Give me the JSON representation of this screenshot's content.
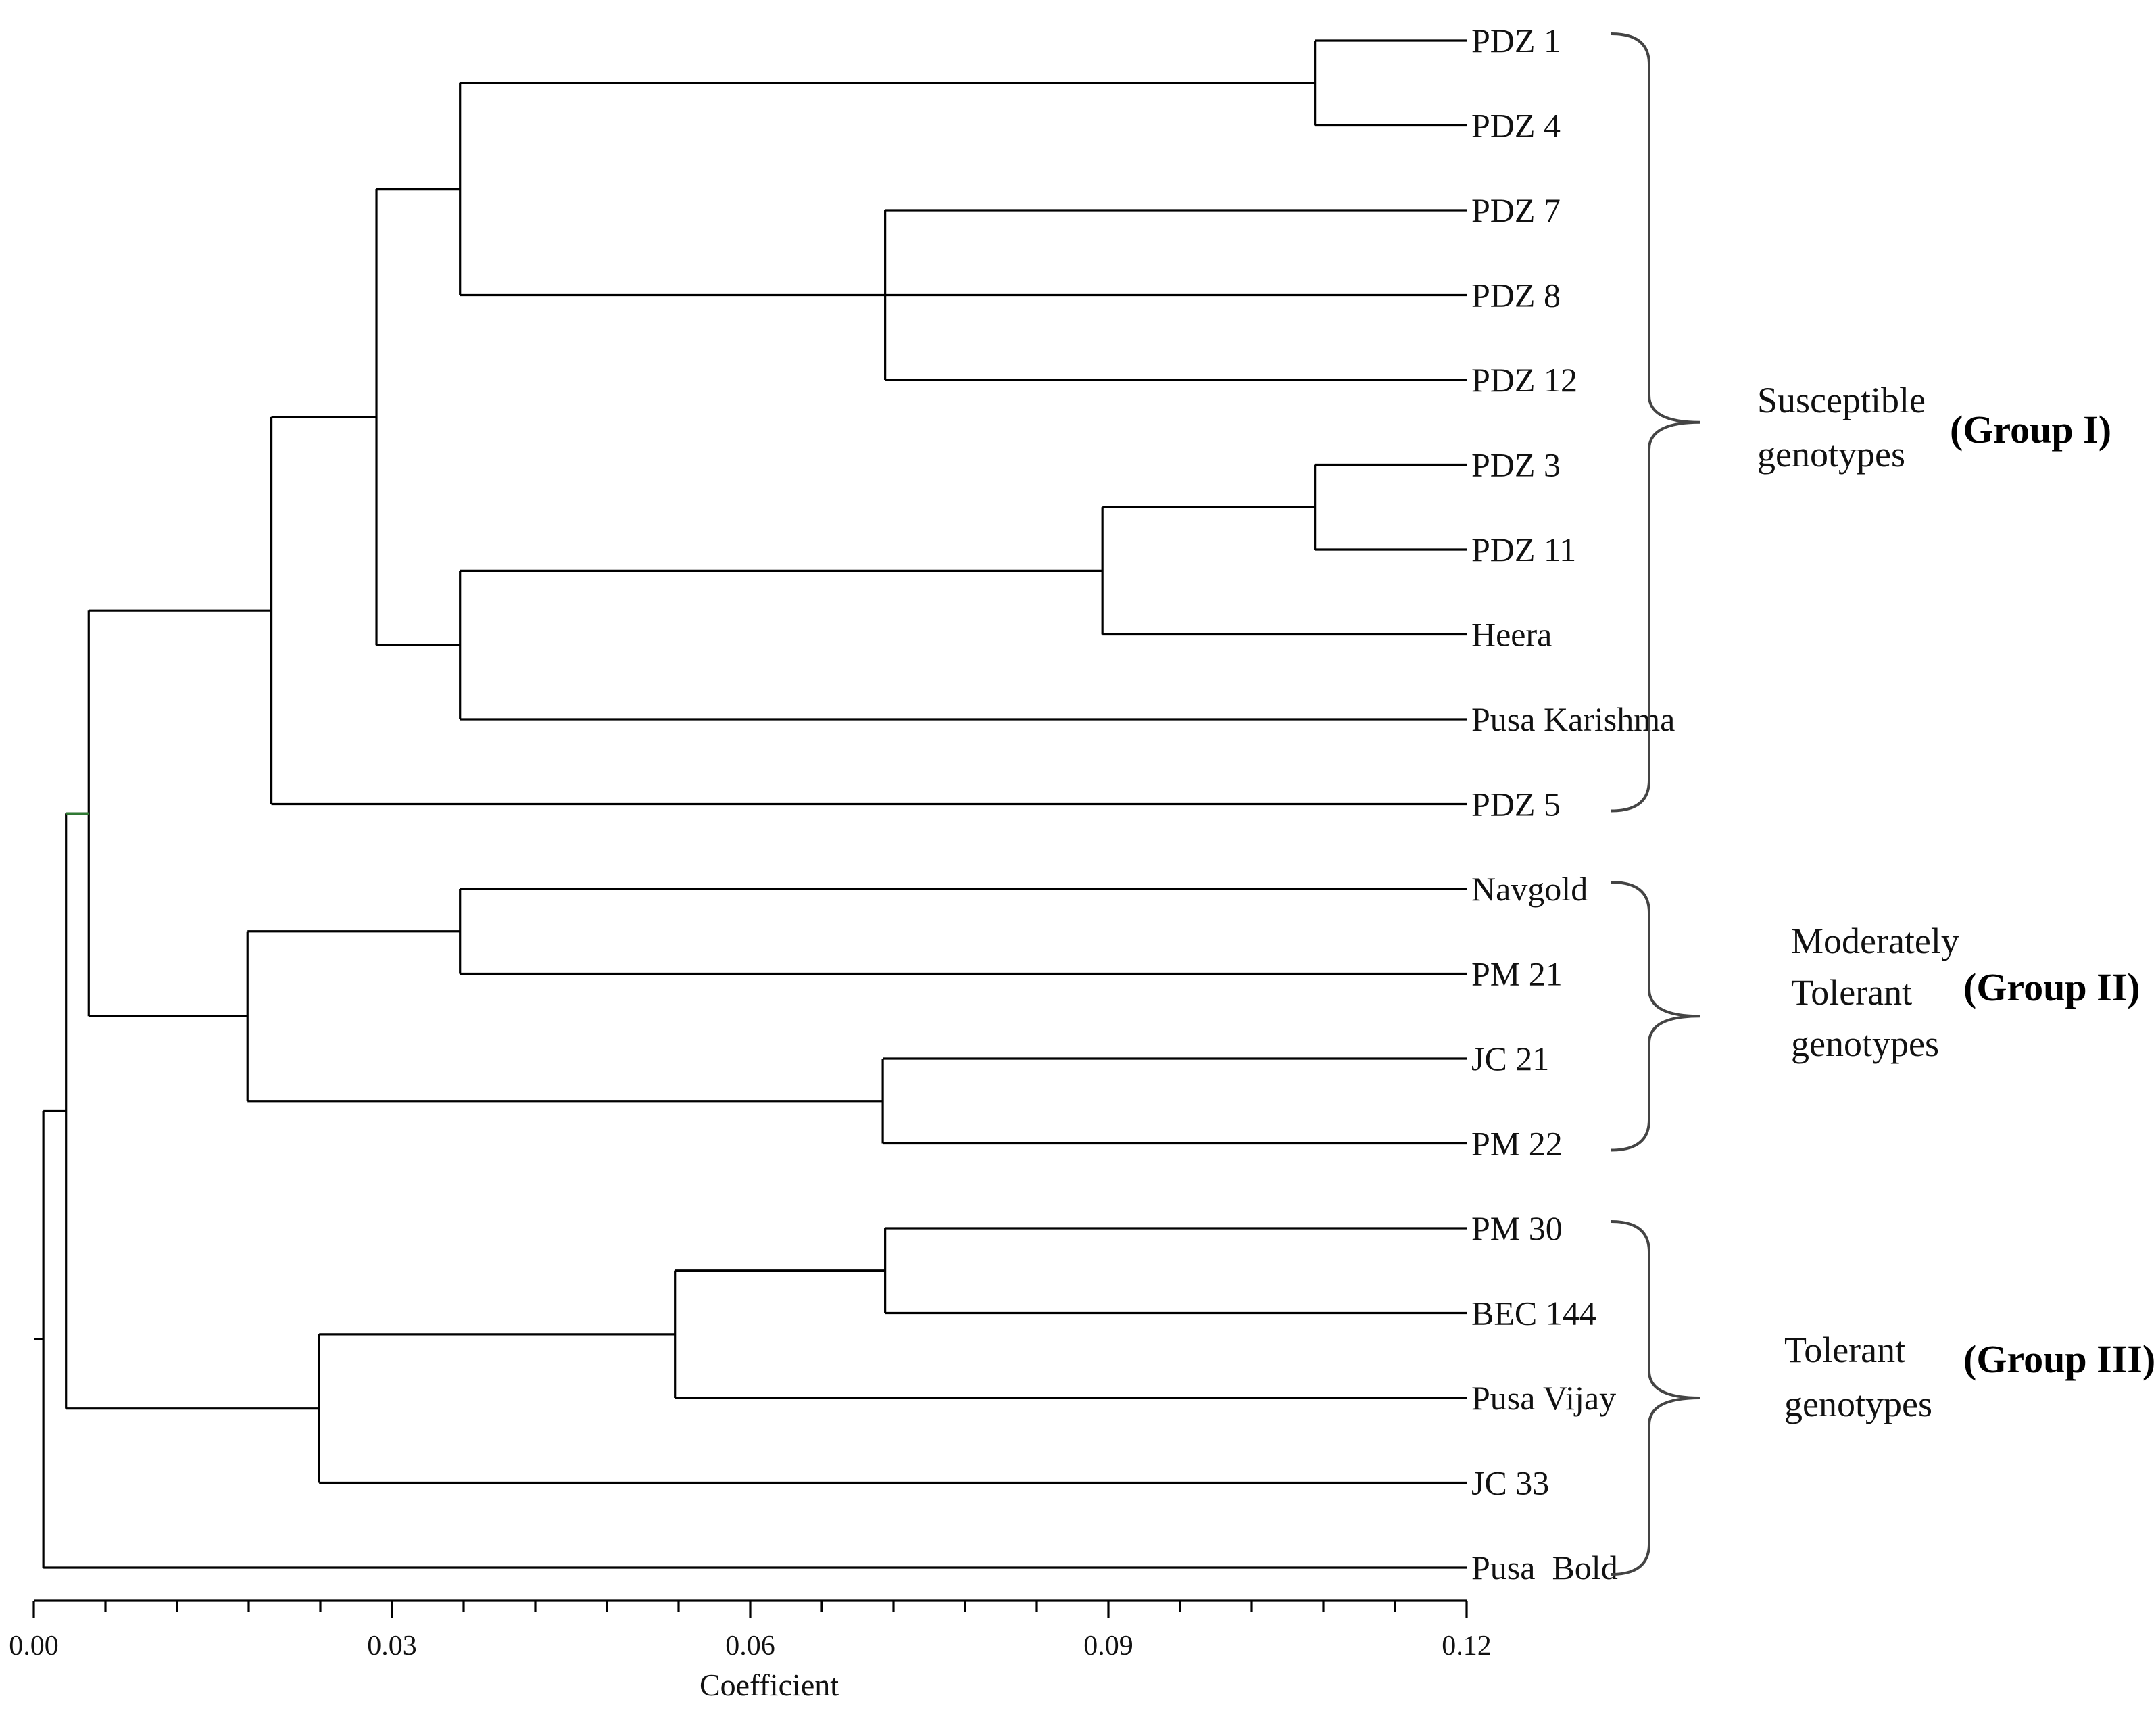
{
  "chart_data": {
    "type": "dendrogram",
    "title": "",
    "xlabel": "Coefficient",
    "ylabel": "",
    "xlim": [
      0.0,
      0.12
    ],
    "ticks": [
      {
        "value": 0.0,
        "label": "0.00"
      },
      {
        "value": 0.03,
        "label": "0.03"
      },
      {
        "value": 0.06,
        "label": "0.06"
      },
      {
        "value": 0.09,
        "label": "0.09"
      },
      {
        "value": 0.12,
        "label": "0.12"
      }
    ],
    "minor_tick_step": 0.006,
    "leaves": [
      "PDZ 1",
      "PDZ 4",
      "PDZ 7",
      "PDZ 8",
      "PDZ 12",
      "PDZ 3",
      "PDZ 11",
      "Heera",
      "Pusa Karishma",
      "PDZ 5",
      "Navgold",
      "PM 21",
      "JC 21",
      "PM 22",
      "PM 30",
      "BEC 144",
      "Pusa Vijay",
      "JC 33",
      "Pusa  Bold"
    ],
    "merges": [
      {
        "id": "n1",
        "children": [
          "PDZ 1",
          "PDZ 4"
        ],
        "coefficient": 0.1073
      },
      {
        "id": "n2",
        "children": [
          "PDZ 7",
          "PDZ 8",
          "PDZ 12"
        ],
        "coefficient": 0.0713
      },
      {
        "id": "n3",
        "children": [
          "n1",
          "n2"
        ],
        "coefficient": 0.0357
      },
      {
        "id": "n4",
        "children": [
          "PDZ 3",
          "PDZ 11"
        ],
        "coefficient": 0.1073
      },
      {
        "id": "n5",
        "children": [
          "n4",
          "Heera"
        ],
        "coefficient": 0.0895
      },
      {
        "id": "n6",
        "children": [
          "n5",
          "Pusa Karishma"
        ],
        "coefficient": 0.0357
      },
      {
        "id": "n7",
        "children": [
          "n3",
          "n6"
        ],
        "coefficient": 0.0287
      },
      {
        "id": "n8",
        "children": [
          "n7",
          "PDZ 5"
        ],
        "coefficient": 0.0199
      },
      {
        "id": "n9",
        "children": [
          "Navgold",
          "PM 21"
        ],
        "coefficient": 0.0357
      },
      {
        "id": "n10",
        "children": [
          "JC 21",
          "PM 22"
        ],
        "coefficient": 0.0711
      },
      {
        "id": "n11",
        "children": [
          "n9",
          "n10"
        ],
        "coefficient": 0.0179
      },
      {
        "id": "n12",
        "children": [
          "n8",
          "n11"
        ],
        "coefficient": 0.0046
      },
      {
        "id": "n13",
        "children": [
          "PM 30",
          "BEC 144"
        ],
        "coefficient": 0.0713
      },
      {
        "id": "n14",
        "children": [
          "n13",
          "Pusa Vijay"
        ],
        "coefficient": 0.0537
      },
      {
        "id": "n15",
        "children": [
          "n14",
          "JC 33"
        ],
        "coefficient": 0.0239
      },
      {
        "id": "n16",
        "children": [
          "n12",
          "n15"
        ],
        "coefficient": 0.0027
      },
      {
        "id": "n17",
        "children": [
          "n16",
          "Pusa  Bold"
        ],
        "coefficient": 0.0008
      }
    ],
    "groups": [
      {
        "description": [
          "Susceptible",
          "genotypes"
        ],
        "name": "(Group I)",
        "first_leaf": 0,
        "last_leaf": 9
      },
      {
        "description": [
          "Moderately",
          "Tolerant",
          "genotypes"
        ],
        "name": "(Group II)",
        "first_leaf": 10,
        "last_leaf": 13
      },
      {
        "description": [
          "Tolerant",
          "genotypes"
        ],
        "name": "(Group III)",
        "first_leaf": 14,
        "last_leaf": 18
      }
    ],
    "colors": {
      "lines": "#000000",
      "root_accent": "#2e7d32",
      "braces": "#444444"
    }
  }
}
